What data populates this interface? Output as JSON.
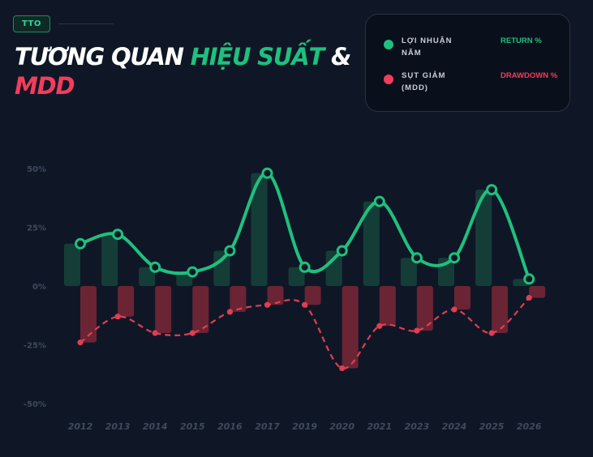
{
  "badge": "TTO",
  "title": {
    "part1": "TƯƠNG QUAN ",
    "part2": "HIỆU SUẤT",
    "part3": " & ",
    "part4": "MDD"
  },
  "legend": [
    {
      "label": "LỢI NHUẬN NĂM",
      "value": "RETURN %",
      "color": "#1fc07e"
    },
    {
      "label": "SỤT GIẢM (MDD)",
      "value": "DRAWDOWN %",
      "color": "#f23d5c"
    }
  ],
  "colors": {
    "returns": "#1fc07e",
    "drawdown": "#e03e52",
    "returns_bar": "#153d38",
    "drawdown_bar": "#6a2434"
  },
  "chart_data": {
    "type": "bar",
    "categories": [
      "2012",
      "2013",
      "2014",
      "2015",
      "2016",
      "2017",
      "2019",
      "2020",
      "2021",
      "2023",
      "2024",
      "2025",
      "2026"
    ],
    "series": [
      {
        "name": "LỢI NHUẬN NĂM",
        "values": [
          18,
          22,
          8,
          6,
          15,
          48,
          8,
          15,
          36,
          12,
          12,
          41,
          3
        ]
      },
      {
        "name": "SỤT GIẢM (MDD)",
        "values": [
          -24,
          -13,
          -20,
          -20,
          -11,
          -8,
          -8,
          -35,
          -17,
          -19,
          -10,
          -20,
          -5
        ]
      }
    ],
    "y_ticks": [
      "50%",
      "25%",
      "0%",
      "-25%",
      "-50%"
    ],
    "ylim": [
      -50,
      50
    ],
    "grid": false,
    "legend": "top-right"
  }
}
